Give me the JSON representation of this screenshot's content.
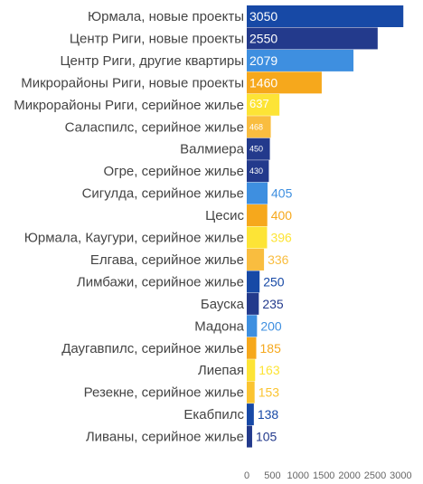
{
  "colors": {
    "navy": "#233a8c",
    "royal": "#1749a6",
    "sky": "#3e8fe0",
    "orange": "#f6a81c",
    "lightorange": "#f9bd3f",
    "yellow": "#fde436",
    "amber": "#fbc431"
  },
  "chart_data": {
    "type": "bar",
    "orientation": "horizontal",
    "categories": [
      "Юрмала, новые проекты",
      "Центр Риги, новые проекты",
      "Центр Риги, другие квартиры",
      "Микрорайоны Риги, новые проекты",
      "Микрорайоны Риги, серийное жилье",
      "Саласпилс, серийное жилье",
      "Валмиера",
      "Огре, серийное жилье",
      "Сигулда, серийное жилье",
      "Цесис",
      "Юрмала, Каугури, серийное жилье",
      "Елгава, серийное жилье",
      "Лимбажи, серийное жилье",
      "Бауска",
      "Мадона",
      "Даугавпилс, серийное жилье",
      "Лиепая",
      "Резекне, серийное жилье",
      "Екабпилс",
      "Ливаны, серийное жилье"
    ],
    "values": [
      3050,
      2550,
      2079,
      1460,
      637,
      468,
      450,
      430,
      405,
      400,
      396,
      336,
      250,
      235,
      200,
      185,
      163,
      153,
      138,
      105
    ],
    "value_labels": [
      "3050",
      "2550",
      "2079",
      "1460",
      "637",
      "468",
      "450",
      "430",
      "405",
      "400",
      "396",
      "336",
      "250",
      "235",
      "200",
      "185",
      "163",
      "153",
      "138",
      "105"
    ],
    "bar_colors": [
      "#1749a6",
      "#233a8c",
      "#3e8fe0",
      "#f6a81c",
      "#fde436",
      "#f9bd3f",
      "#233a8c",
      "#233a8c",
      "#3e8fe0",
      "#f6a81c",
      "#fde436",
      "#f9bd3f",
      "#1749a6",
      "#233a8c",
      "#3e8fe0",
      "#f6a81c",
      "#fde436",
      "#fbc431",
      "#1749a6",
      "#233a8c"
    ],
    "xlim": [
      0,
      3000
    ],
    "xticks": [
      "0",
      "500",
      "1000",
      "1500",
      "2000",
      "2500",
      "3000"
    ],
    "xtick_values": [
      0,
      500,
      1000,
      1500,
      2000,
      2500,
      3000
    ],
    "grid": false,
    "legend": false
  }
}
